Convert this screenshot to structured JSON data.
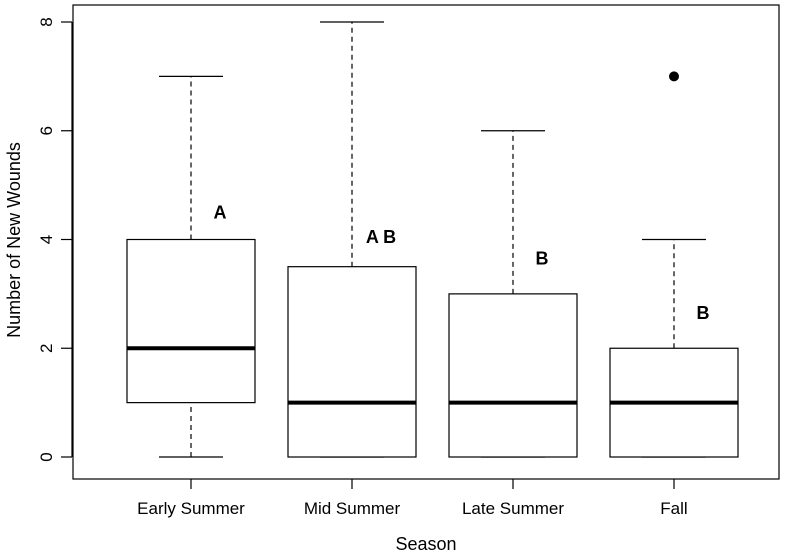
{
  "chart_data": {
    "type": "boxplot",
    "title": "",
    "xlabel": "Season",
    "ylabel": "Number of New Wounds",
    "ylim": [
      0,
      8
    ],
    "yticks": [
      0,
      2,
      4,
      6,
      8
    ],
    "grid": false,
    "categories": [
      "Early Summer",
      "Mid Summer",
      "Late Summer",
      "Fall"
    ],
    "boxes": [
      {
        "category": "Early Summer",
        "whisker_low": 0,
        "q1": 1,
        "median": 2,
        "q3": 4,
        "whisker_high": 7,
        "outliers": [],
        "group_letter": "A",
        "letter_y": 4.5
      },
      {
        "category": "Mid Summer",
        "whisker_low": 0,
        "q1": 0,
        "median": 1,
        "q3": 3.5,
        "whisker_high": 8,
        "outliers": [],
        "group_letter": "A B",
        "letter_y": 4.05
      },
      {
        "category": "Late Summer",
        "whisker_low": 0,
        "q1": 0,
        "median": 1,
        "q3": 3,
        "whisker_high": 6,
        "outliers": [],
        "group_letter": "B",
        "letter_y": 3.65
      },
      {
        "category": "Fall",
        "whisker_low": 0,
        "q1": 0,
        "median": 1,
        "q3": 2,
        "whisker_high": 4,
        "outliers": [
          7
        ],
        "group_letter": "B",
        "letter_y": 2.65
      }
    ]
  }
}
